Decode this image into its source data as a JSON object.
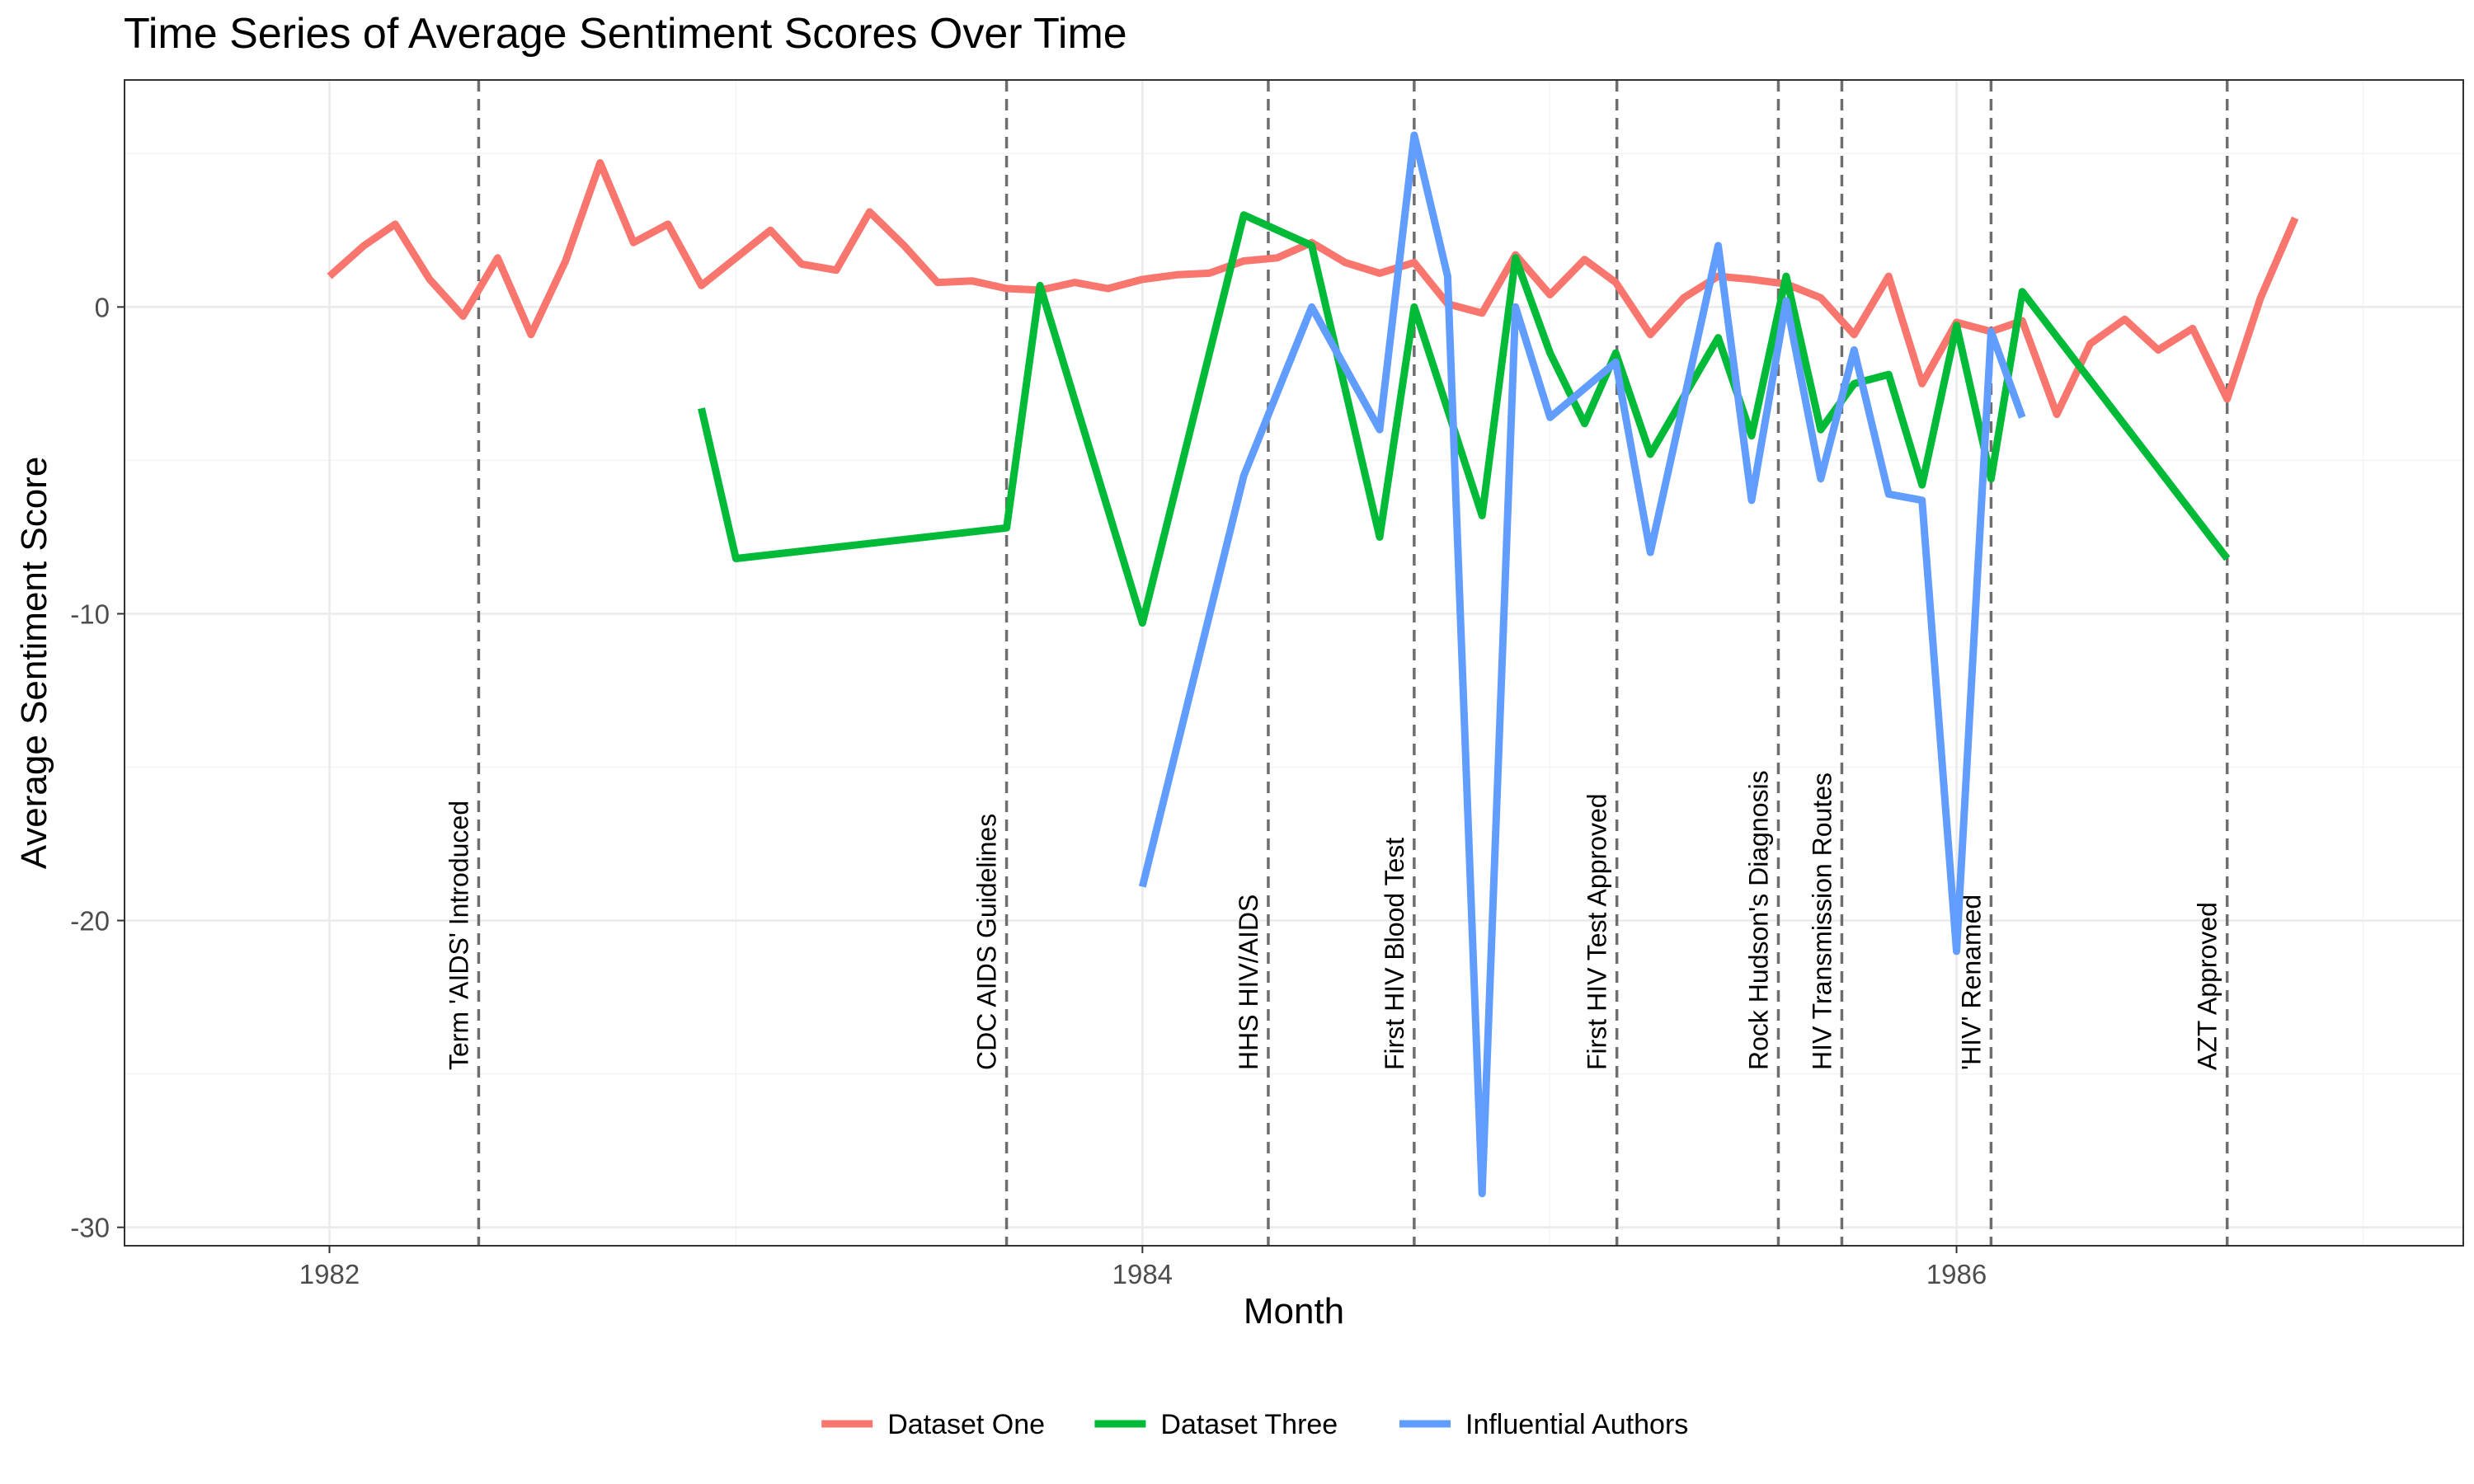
{
  "chart_data": {
    "type": "line",
    "title": "Time Series of Average Sentiment Scores Over Time",
    "xlabel": "Month",
    "ylabel": "Average Sentiment Score",
    "xlim": [
      "1981-07-01",
      "1987-04-01"
    ],
    "ylim": [
      -30.6,
      7.4
    ],
    "x_ticks": [
      {
        "date": "1982-01-01",
        "label": "1982"
      },
      {
        "date": "1984-01-01",
        "label": "1984"
      },
      {
        "date": "1986-01-01",
        "label": "1986"
      }
    ],
    "y_ticks": [
      {
        "value": 0,
        "label": "0"
      },
      {
        "value": -10,
        "label": "-10"
      },
      {
        "value": -20,
        "label": "-20"
      },
      {
        "value": -30,
        "label": "-30"
      }
    ],
    "grid": true,
    "legend_position": "bottom",
    "events": [
      {
        "date": "1982-05-15",
        "label": "Term 'AIDS' Introduced"
      },
      {
        "date": "1983-09-01",
        "label": "CDC AIDS Guidelines"
      },
      {
        "date": "1984-04-23",
        "label": "HHS HIV/AIDS"
      },
      {
        "date": "1984-09-01",
        "label": "First HIV Blood Test"
      },
      {
        "date": "1985-03-02",
        "label": "First HIV Test Approved"
      },
      {
        "date": "1985-07-25",
        "label": "Rock Hudson's Diagnosis"
      },
      {
        "date": "1985-09-20",
        "label": "HIV Transmission Routes"
      },
      {
        "date": "1986-02-01",
        "label": "'HIV' Renamed"
      },
      {
        "date": "1986-09-01",
        "label": "AZT Approved"
      }
    ],
    "series": [
      {
        "name": "Dataset One",
        "color": "#F8766D",
        "points": [
          [
            "1982-01-01",
            1.0
          ],
          [
            "1982-02-01",
            2.0
          ],
          [
            "1982-03-01",
            2.7
          ],
          [
            "1982-04-01",
            0.9
          ],
          [
            "1982-05-01",
            -0.3
          ],
          [
            "1982-06-01",
            1.6
          ],
          [
            "1982-07-01",
            -0.9
          ],
          [
            "1982-08-01",
            1.5
          ],
          [
            "1982-09-01",
            4.7
          ],
          [
            "1982-10-01",
            2.1
          ],
          [
            "1982-11-01",
            2.7
          ],
          [
            "1982-12-01",
            0.7
          ],
          [
            "1983-01-01",
            1.6
          ],
          [
            "1983-02-01",
            2.5
          ],
          [
            "1983-03-01",
            1.4
          ],
          [
            "1983-04-01",
            1.2
          ],
          [
            "1983-05-01",
            3.1
          ],
          [
            "1983-06-01",
            2.0
          ],
          [
            "1983-07-01",
            0.8
          ],
          [
            "1983-08-01",
            0.85
          ],
          [
            "1983-09-01",
            0.6
          ],
          [
            "1983-10-01",
            0.55
          ],
          [
            "1983-11-01",
            0.8
          ],
          [
            "1983-12-01",
            0.6
          ],
          [
            "1984-01-01",
            0.9
          ],
          [
            "1984-02-01",
            1.05
          ],
          [
            "1984-03-01",
            1.1
          ],
          [
            "1984-04-01",
            1.5
          ],
          [
            "1984-05-01",
            1.6
          ],
          [
            "1984-06-01",
            2.1
          ],
          [
            "1984-07-01",
            1.45
          ],
          [
            "1984-08-01",
            1.1
          ],
          [
            "1984-09-01",
            1.45
          ],
          [
            "1984-10-01",
            0.1
          ],
          [
            "1984-11-01",
            -0.2
          ],
          [
            "1984-12-01",
            1.7
          ],
          [
            "1985-01-01",
            0.4
          ],
          [
            "1985-02-01",
            1.55
          ],
          [
            "1985-03-01",
            0.8
          ],
          [
            "1985-04-01",
            -0.9
          ],
          [
            "1985-05-01",
            0.3
          ],
          [
            "1985-06-01",
            1.0
          ],
          [
            "1985-07-01",
            0.9
          ],
          [
            "1985-08-01",
            0.75
          ],
          [
            "1985-09-01",
            0.3
          ],
          [
            "1985-10-01",
            -0.9
          ],
          [
            "1985-11-01",
            1.0
          ],
          [
            "1985-12-01",
            -2.5
          ],
          [
            "1986-01-01",
            -0.5
          ],
          [
            "1986-02-01",
            -0.8
          ],
          [
            "1986-03-01",
            -0.45
          ],
          [
            "1986-04-01",
            -3.5
          ],
          [
            "1986-05-01",
            -1.2
          ],
          [
            "1986-06-01",
            -0.4
          ],
          [
            "1986-07-01",
            -1.4
          ],
          [
            "1986-08-01",
            -0.7
          ],
          [
            "1986-09-01",
            -3.0
          ],
          [
            "1986-10-01",
            0.3
          ],
          [
            "1986-11-01",
            2.9
          ]
        ]
      },
      {
        "name": "Dataset Three",
        "color": "#00BA38",
        "points": [
          [
            "1982-12-01",
            -3.3
          ],
          [
            "1983-01-01",
            -8.2
          ],
          [
            "1983-09-01",
            -7.2
          ],
          [
            "1983-10-01",
            0.7
          ],
          [
            "1984-01-01",
            -10.3
          ],
          [
            "1984-04-01",
            3.0
          ],
          [
            "1984-06-01",
            2.0
          ],
          [
            "1984-08-01",
            -7.5
          ],
          [
            "1984-09-01",
            0.0
          ],
          [
            "1984-11-01",
            -6.8
          ],
          [
            "1984-12-01",
            1.6
          ],
          [
            "1985-01-01",
            -1.5
          ],
          [
            "1985-02-01",
            -3.8
          ],
          [
            "1985-03-01",
            -1.5
          ],
          [
            "1985-04-01",
            -4.8
          ],
          [
            "1985-06-01",
            -1.0
          ],
          [
            "1985-07-01",
            -4.2
          ],
          [
            "1985-08-01",
            1.0
          ],
          [
            "1985-09-01",
            -4.0
          ],
          [
            "1985-10-01",
            -2.5
          ],
          [
            "1985-11-01",
            -2.2
          ],
          [
            "1985-12-01",
            -5.8
          ],
          [
            "1986-01-01",
            -0.6
          ],
          [
            "1986-02-01",
            -5.6
          ],
          [
            "1986-03-01",
            0.5
          ],
          [
            "1986-09-01",
            -8.2
          ]
        ]
      },
      {
        "name": "Influential Authors",
        "color": "#619CFF",
        "points": [
          [
            "1984-01-01",
            -18.9
          ],
          [
            "1984-04-01",
            -5.5
          ],
          [
            "1984-06-01",
            0.0
          ],
          [
            "1984-08-01",
            -4.0
          ],
          [
            "1984-09-01",
            5.6
          ],
          [
            "1984-10-01",
            1.0
          ],
          [
            "1984-11-01",
            -28.9
          ],
          [
            "1984-12-01",
            0.0
          ],
          [
            "1985-01-01",
            -3.6
          ],
          [
            "1985-03-01",
            -1.8
          ],
          [
            "1985-04-01",
            -8.0
          ],
          [
            "1985-06-01",
            2.0
          ],
          [
            "1985-07-01",
            -6.3
          ],
          [
            "1985-08-01",
            0.2
          ],
          [
            "1985-09-01",
            -5.6
          ],
          [
            "1985-10-01",
            -1.4
          ],
          [
            "1985-11-01",
            -6.1
          ],
          [
            "1985-12-01",
            -6.3
          ],
          [
            "1986-01-01",
            -21.0
          ],
          [
            "1986-02-01",
            -0.8
          ],
          [
            "1986-03-01",
            -3.6
          ]
        ]
      }
    ]
  }
}
